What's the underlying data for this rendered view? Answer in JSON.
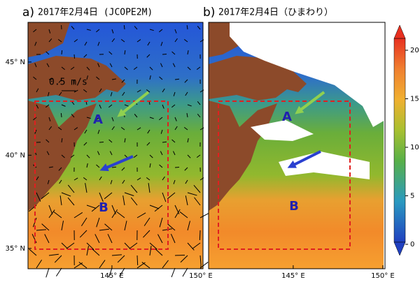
{
  "panels": [
    {
      "label": "a)",
      "title": "2017年2月4日 (JCOPE2M)",
      "scale_label": "0.5 m/s",
      "markers": [
        "A",
        "B"
      ],
      "xlim": [
        140.28,
        150.12
      ],
      "ylim": [
        33.91,
        47.13
      ],
      "xticks": [
        {
          "value": 145,
          "label": "145° E"
        },
        {
          "value": 150,
          "label": "150° E"
        }
      ],
      "yticks": [
        {
          "value": 45,
          "label": "45° N"
        },
        {
          "value": 40,
          "label": "40° N"
        },
        {
          "value": 35,
          "label": "35° N"
        }
      ]
    },
    {
      "label": "b)",
      "title": "2017年2月4日（ひまわり）",
      "markers": [
        "A",
        "B"
      ],
      "xlim": [
        140.28,
        150.12
      ],
      "ylim": [
        33.91,
        47.13
      ],
      "xticks": [
        {
          "value": 145,
          "label": "145° E"
        },
        {
          "value": 150,
          "label": "150° E"
        }
      ]
    }
  ],
  "colorbar": {
    "lim": [
      0,
      20
    ],
    "ticks": [
      0,
      5,
      10,
      15,
      20
    ]
  }
}
